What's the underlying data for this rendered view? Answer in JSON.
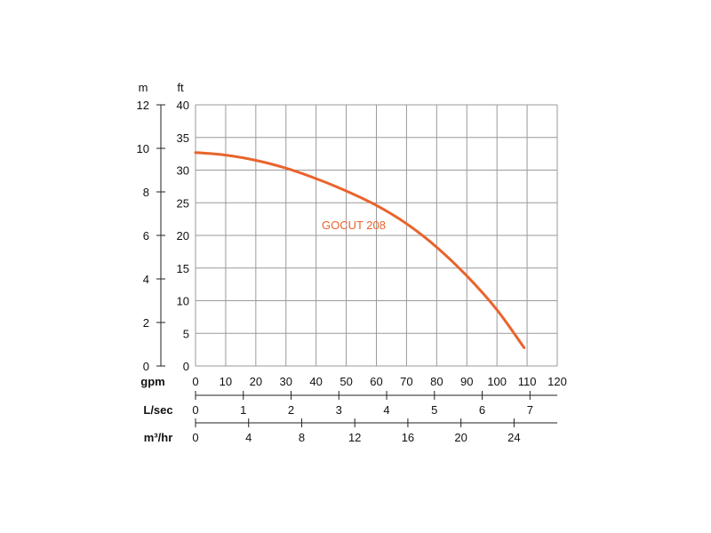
{
  "chart_data": {
    "type": "line",
    "series": [
      {
        "name": "GOCUT 208",
        "x": [
          0,
          10,
          20,
          30,
          40,
          50,
          60,
          70,
          80,
          90,
          100,
          109
        ],
        "y": [
          32.7,
          32.3,
          31.5,
          30.3,
          28.7,
          26.8,
          24.6,
          21.8,
          18.2,
          13.8,
          8.6,
          2.8
        ]
      }
    ],
    "y_axis_ft": {
      "label": "ft",
      "ticks": [
        "0",
        "5",
        "10",
        "15",
        "20",
        "25",
        "30",
        "35",
        "40"
      ],
      "ylim": [
        0,
        40
      ]
    },
    "y_axis_m": {
      "label": "m",
      "ticks": [
        "0",
        "2",
        "4",
        "6",
        "8",
        "10",
        "12"
      ],
      "ylim": [
        0,
        12
      ]
    },
    "x_axis_gpm": {
      "label": "gpm",
      "ticks": [
        "0",
        "10",
        "20",
        "30",
        "40",
        "50",
        "60",
        "70",
        "80",
        "90",
        "100",
        "110",
        "120"
      ],
      "xlim": [
        0,
        120
      ]
    },
    "x_axis_lsec": {
      "label": "L/sec",
      "ticks": [
        "0",
        "1",
        "2",
        "3",
        "4",
        "5",
        "6",
        "7"
      ]
    },
    "x_axis_m3hr": {
      "label": "m³/hr",
      "ticks": [
        "0",
        "4",
        "8",
        "12",
        "16",
        "20",
        "24"
      ]
    },
    "grid": true,
    "curve_color": "#e8642c"
  }
}
